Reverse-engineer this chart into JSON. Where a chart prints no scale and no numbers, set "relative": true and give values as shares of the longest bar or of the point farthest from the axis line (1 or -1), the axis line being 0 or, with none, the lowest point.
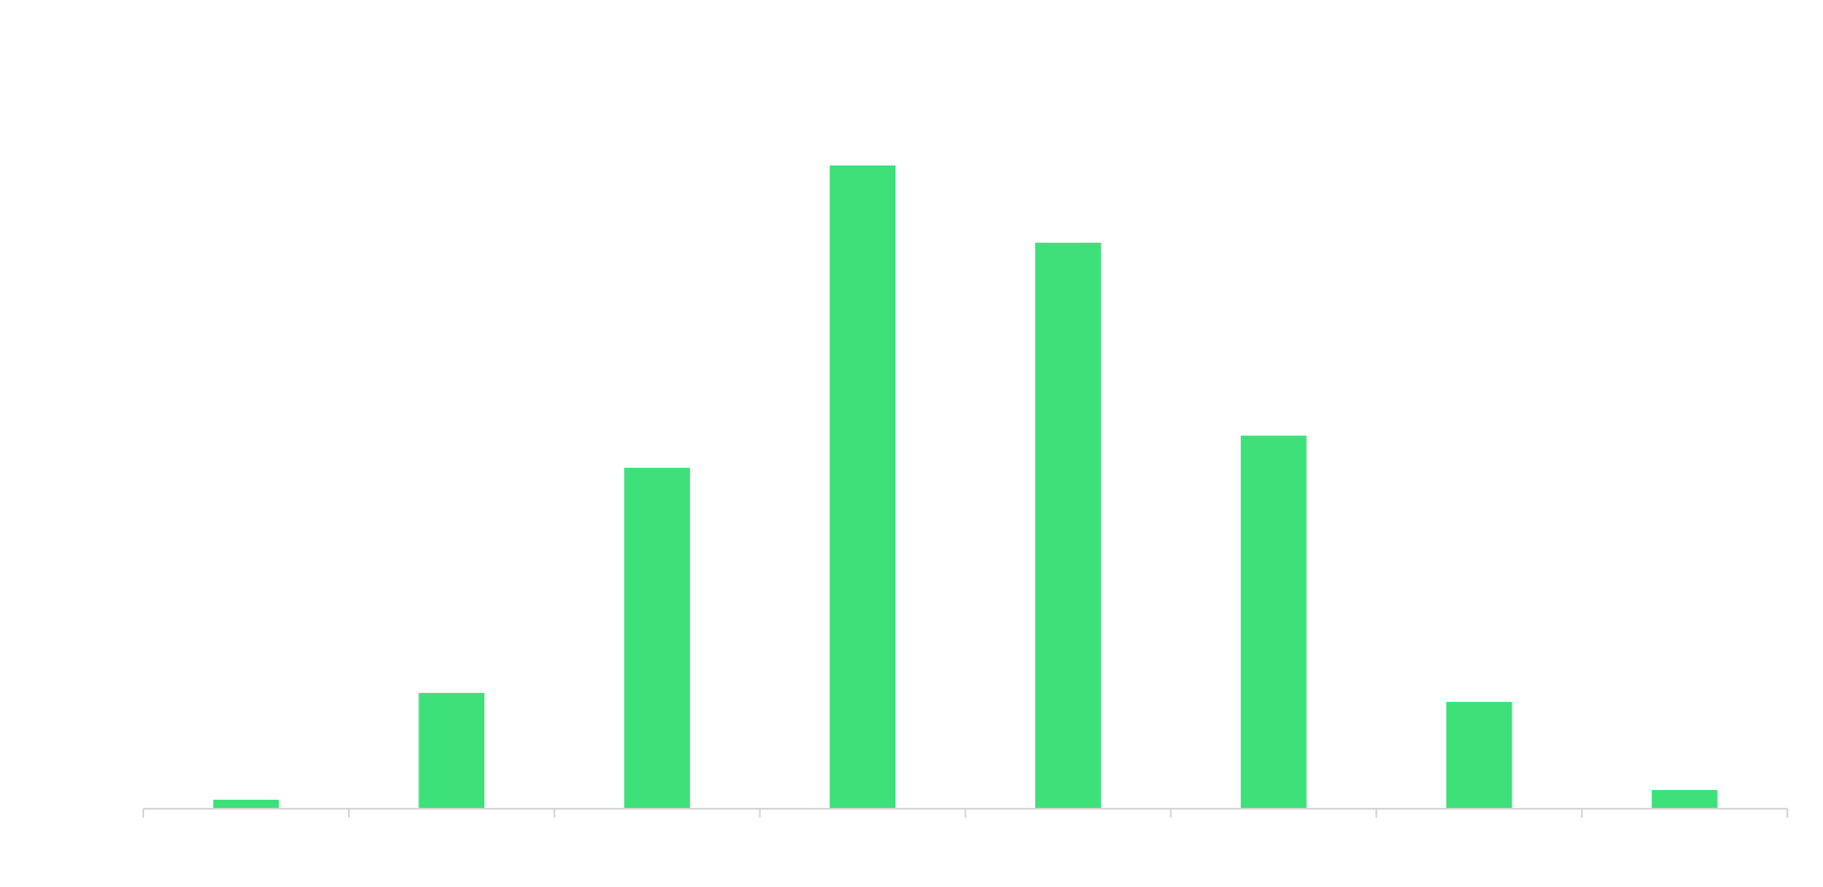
{
  "chart_data": {
    "type": "bar",
    "relative": true,
    "categories": [
      null,
      null,
      null,
      null,
      null,
      null,
      null,
      null
    ],
    "values": [
      0.014,
      0.18,
      0.53,
      1,
      0.88,
      0.58,
      0.166,
      0.029
    ],
    "color": "#3ee07a",
    "grid": false
  }
}
